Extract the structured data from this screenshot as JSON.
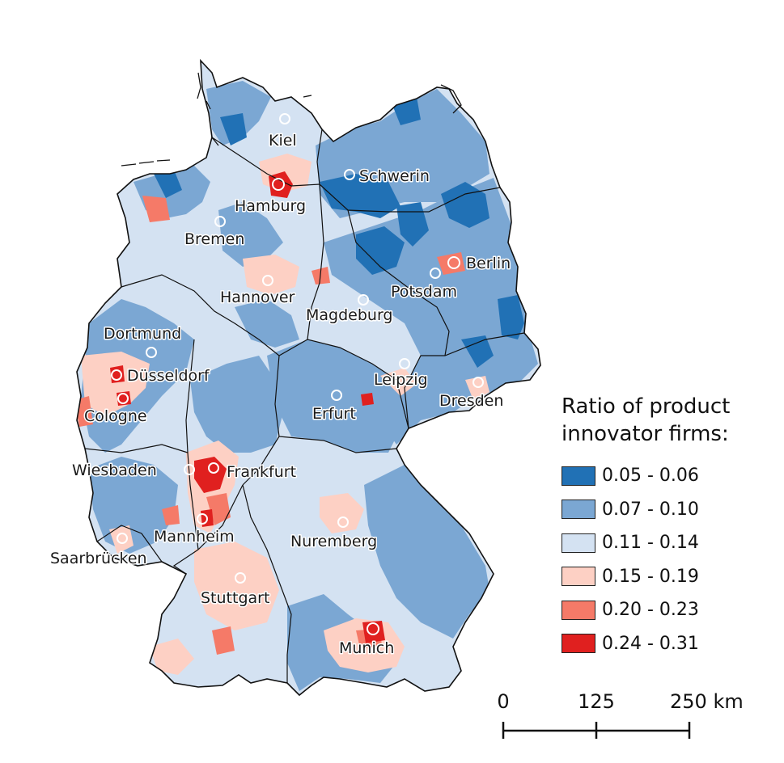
{
  "colors": {
    "class_1": "#2171b5",
    "class_2": "#7ba7d3",
    "class_3": "#d4e2f2",
    "class_4": "#fdd0c4",
    "class_5": "#f57a68",
    "class_6": "#e0201f",
    "border": "#111111",
    "city_marker": "#ffffff"
  },
  "legend": {
    "title_line1": "Ratio of product",
    "title_line2": "innovator firms:",
    "items": [
      {
        "label": "0.05 - 0.06",
        "color": "#2171b5"
      },
      {
        "label": "0.07 - 0.10",
        "color": "#7ba7d3"
      },
      {
        "label": "0.11 - 0.14",
        "color": "#d4e2f2"
      },
      {
        "label": "0.15 - 0.19",
        "color": "#fdd0c4"
      },
      {
        "label": "0.20 - 0.23",
        "color": "#f57a68"
      },
      {
        "label": "0.24 - 0.31",
        "color": "#e0201f"
      }
    ]
  },
  "scale_bar": {
    "tick_0": "0",
    "tick_1": "125",
    "tick_2": "250 km"
  },
  "cities": [
    {
      "name": "Kiel",
      "label": "Kiel"
    },
    {
      "name": "Hamburg",
      "label": "Hamburg"
    },
    {
      "name": "Schwerin",
      "label": "Schwerin"
    },
    {
      "name": "Bremen",
      "label": "Bremen"
    },
    {
      "name": "Berlin",
      "label": "Berlin"
    },
    {
      "name": "Potsdam",
      "label": "Potsdam"
    },
    {
      "name": "Hannover",
      "label": "Hannover"
    },
    {
      "name": "Magdeburg",
      "label": "Magdeburg"
    },
    {
      "name": "Dortmund",
      "label": "Dortmund"
    },
    {
      "name": "Dusseldorf",
      "label": "Düsseldorf"
    },
    {
      "name": "Leipzig",
      "label": "Leipzig"
    },
    {
      "name": "Dresden",
      "label": "Dresden"
    },
    {
      "name": "Cologne",
      "label": "Cologne"
    },
    {
      "name": "Erfurt",
      "label": "Erfurt"
    },
    {
      "name": "Wiesbaden",
      "label": "Wiesbaden"
    },
    {
      "name": "Frankfurt",
      "label": "Frankfurt"
    },
    {
      "name": "Mannheim",
      "label": "Mannheim"
    },
    {
      "name": "Nuremberg",
      "label": "Nuremberg"
    },
    {
      "name": "Saarbrucken",
      "label": "Saarbrücken"
    },
    {
      "name": "Stuttgart",
      "label": "Stuttgart"
    },
    {
      "name": "Munich",
      "label": "Munich"
    }
  ]
}
